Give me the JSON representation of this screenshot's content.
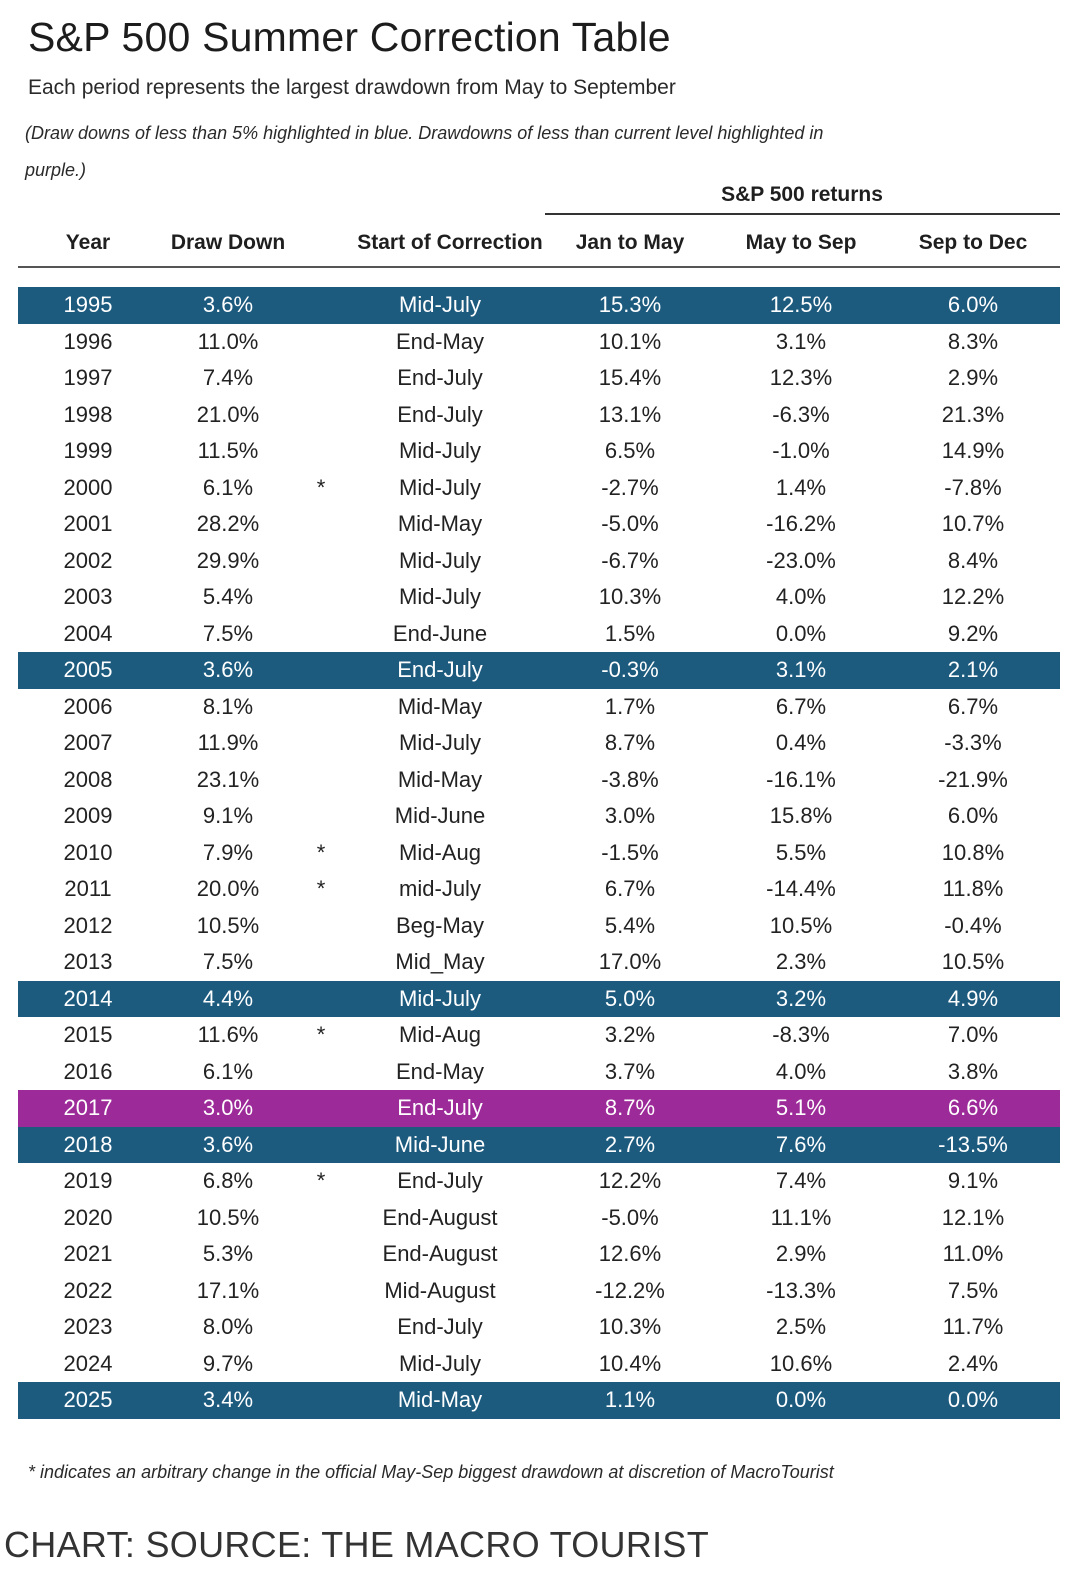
{
  "chart_data": {
    "type": "table",
    "title": "S&P 500 Summer Correction Table",
    "subtitle": "Each period represents the largest drawdown from May to September",
    "note": "(Draw downs of less than 5% highlighted in blue. Drawdowns of less than current level highlighted in purple.)",
    "group_header": "S&P 500 returns",
    "columns": [
      "Year",
      "Draw Down",
      "Start of Correction",
      "Jan to May",
      "May to Sep",
      "Sep to Dec"
    ],
    "highlight_colors": {
      "blue": "#1c5a7e",
      "purple": "#9c2a98"
    },
    "rows": [
      {
        "year": "1995",
        "drawdown": "3.6%",
        "star": "",
        "start": "Mid-July",
        "jan_may": "15.3%",
        "may_sep": "12.5%",
        "sep_dec": "6.0%",
        "highlight": "blue"
      },
      {
        "year": "1996",
        "drawdown": "11.0%",
        "star": "",
        "start": "End-May",
        "jan_may": "10.1%",
        "may_sep": "3.1%",
        "sep_dec": "8.3%",
        "highlight": ""
      },
      {
        "year": "1997",
        "drawdown": "7.4%",
        "star": "",
        "start": "End-July",
        "jan_may": "15.4%",
        "may_sep": "12.3%",
        "sep_dec": "2.9%",
        "highlight": ""
      },
      {
        "year": "1998",
        "drawdown": "21.0%",
        "star": "",
        "start": "End-July",
        "jan_may": "13.1%",
        "may_sep": "-6.3%",
        "sep_dec": "21.3%",
        "highlight": ""
      },
      {
        "year": "1999",
        "drawdown": "11.5%",
        "star": "",
        "start": "Mid-July",
        "jan_may": "6.5%",
        "may_sep": "-1.0%",
        "sep_dec": "14.9%",
        "highlight": ""
      },
      {
        "year": "2000",
        "drawdown": "6.1%",
        "star": "*",
        "start": "Mid-July",
        "jan_may": "-2.7%",
        "may_sep": "1.4%",
        "sep_dec": "-7.8%",
        "highlight": ""
      },
      {
        "year": "2001",
        "drawdown": "28.2%",
        "star": "",
        "start": "Mid-May",
        "jan_may": "-5.0%",
        "may_sep": "-16.2%",
        "sep_dec": "10.7%",
        "highlight": ""
      },
      {
        "year": "2002",
        "drawdown": "29.9%",
        "star": "",
        "start": "Mid-July",
        "jan_may": "-6.7%",
        "may_sep": "-23.0%",
        "sep_dec": "8.4%",
        "highlight": ""
      },
      {
        "year": "2003",
        "drawdown": "5.4%",
        "star": "",
        "start": "Mid-July",
        "jan_may": "10.3%",
        "may_sep": "4.0%",
        "sep_dec": "12.2%",
        "highlight": ""
      },
      {
        "year": "2004",
        "drawdown": "7.5%",
        "star": "",
        "start": "End-June",
        "jan_may": "1.5%",
        "may_sep": "0.0%",
        "sep_dec": "9.2%",
        "highlight": ""
      },
      {
        "year": "2005",
        "drawdown": "3.6%",
        "star": "",
        "start": "End-July",
        "jan_may": "-0.3%",
        "may_sep": "3.1%",
        "sep_dec": "2.1%",
        "highlight": "blue"
      },
      {
        "year": "2006",
        "drawdown": "8.1%",
        "star": "",
        "start": "Mid-May",
        "jan_may": "1.7%",
        "may_sep": "6.7%",
        "sep_dec": "6.7%",
        "highlight": ""
      },
      {
        "year": "2007",
        "drawdown": "11.9%",
        "star": "",
        "start": "Mid-July",
        "jan_may": "8.7%",
        "may_sep": "0.4%",
        "sep_dec": "-3.3%",
        "highlight": ""
      },
      {
        "year": "2008",
        "drawdown": "23.1%",
        "star": "",
        "start": "Mid-May",
        "jan_may": "-3.8%",
        "may_sep": "-16.1%",
        "sep_dec": "-21.9%",
        "highlight": ""
      },
      {
        "year": "2009",
        "drawdown": "9.1%",
        "star": "",
        "start": "Mid-June",
        "jan_may": "3.0%",
        "may_sep": "15.8%",
        "sep_dec": "6.0%",
        "highlight": ""
      },
      {
        "year": "2010",
        "drawdown": "7.9%",
        "star": "*",
        "start": "Mid-Aug",
        "jan_may": "-1.5%",
        "may_sep": "5.5%",
        "sep_dec": "10.8%",
        "highlight": ""
      },
      {
        "year": "2011",
        "drawdown": "20.0%",
        "star": "*",
        "start": "mid-July",
        "jan_may": "6.7%",
        "may_sep": "-14.4%",
        "sep_dec": "11.8%",
        "highlight": ""
      },
      {
        "year": "2012",
        "drawdown": "10.5%",
        "star": "",
        "start": "Beg-May",
        "jan_may": "5.4%",
        "may_sep": "10.5%",
        "sep_dec": "-0.4%",
        "highlight": ""
      },
      {
        "year": "2013",
        "drawdown": "7.5%",
        "star": "",
        "start": "Mid_May",
        "jan_may": "17.0%",
        "may_sep": "2.3%",
        "sep_dec": "10.5%",
        "highlight": ""
      },
      {
        "year": "2014",
        "drawdown": "4.4%",
        "star": "",
        "start": "Mid-July",
        "jan_may": "5.0%",
        "may_sep": "3.2%",
        "sep_dec": "4.9%",
        "highlight": "blue"
      },
      {
        "year": "2015",
        "drawdown": "11.6%",
        "star": "*",
        "start": "Mid-Aug",
        "jan_may": "3.2%",
        "may_sep": "-8.3%",
        "sep_dec": "7.0%",
        "highlight": ""
      },
      {
        "year": "2016",
        "drawdown": "6.1%",
        "star": "",
        "start": "End-May",
        "jan_may": "3.7%",
        "may_sep": "4.0%",
        "sep_dec": "3.8%",
        "highlight": ""
      },
      {
        "year": "2017",
        "drawdown": "3.0%",
        "star": "",
        "start": "End-July",
        "jan_may": "8.7%",
        "may_sep": "5.1%",
        "sep_dec": "6.6%",
        "highlight": "purple"
      },
      {
        "year": "2018",
        "drawdown": "3.6%",
        "star": "",
        "start": "Mid-June",
        "jan_may": "2.7%",
        "may_sep": "7.6%",
        "sep_dec": "-13.5%",
        "highlight": "blue"
      },
      {
        "year": "2019",
        "drawdown": "6.8%",
        "star": "*",
        "start": "End-July",
        "jan_may": "12.2%",
        "may_sep": "7.4%",
        "sep_dec": "9.1%",
        "highlight": ""
      },
      {
        "year": "2020",
        "drawdown": "10.5%",
        "star": "",
        "start": "End-August",
        "jan_may": "-5.0%",
        "may_sep": "11.1%",
        "sep_dec": "12.1%",
        "highlight": ""
      },
      {
        "year": "2021",
        "drawdown": "5.3%",
        "star": "",
        "start": "End-August",
        "jan_may": "12.6%",
        "may_sep": "2.9%",
        "sep_dec": "11.0%",
        "highlight": ""
      },
      {
        "year": "2022",
        "drawdown": "17.1%",
        "star": "",
        "start": "Mid-August",
        "jan_may": "-12.2%",
        "may_sep": "-13.3%",
        "sep_dec": "7.5%",
        "highlight": ""
      },
      {
        "year": "2023",
        "drawdown": "8.0%",
        "star": "",
        "start": "End-July",
        "jan_may": "10.3%",
        "may_sep": "2.5%",
        "sep_dec": "11.7%",
        "highlight": ""
      },
      {
        "year": "2024",
        "drawdown": "9.7%",
        "star": "",
        "start": "Mid-July",
        "jan_may": "10.4%",
        "may_sep": "10.6%",
        "sep_dec": "2.4%",
        "highlight": ""
      },
      {
        "year": "2025",
        "drawdown": "3.4%",
        "star": "",
        "start": "Mid-May",
        "jan_may": "1.1%",
        "may_sep": "0.0%",
        "sep_dec": "0.0%",
        "highlight": "blue"
      }
    ],
    "footnote": "* indicates an arbitrary change in the official May-Sep biggest drawdown at discretion of MacroTourist",
    "source": "CHART: SOURCE: THE MACRO TOURIST"
  }
}
